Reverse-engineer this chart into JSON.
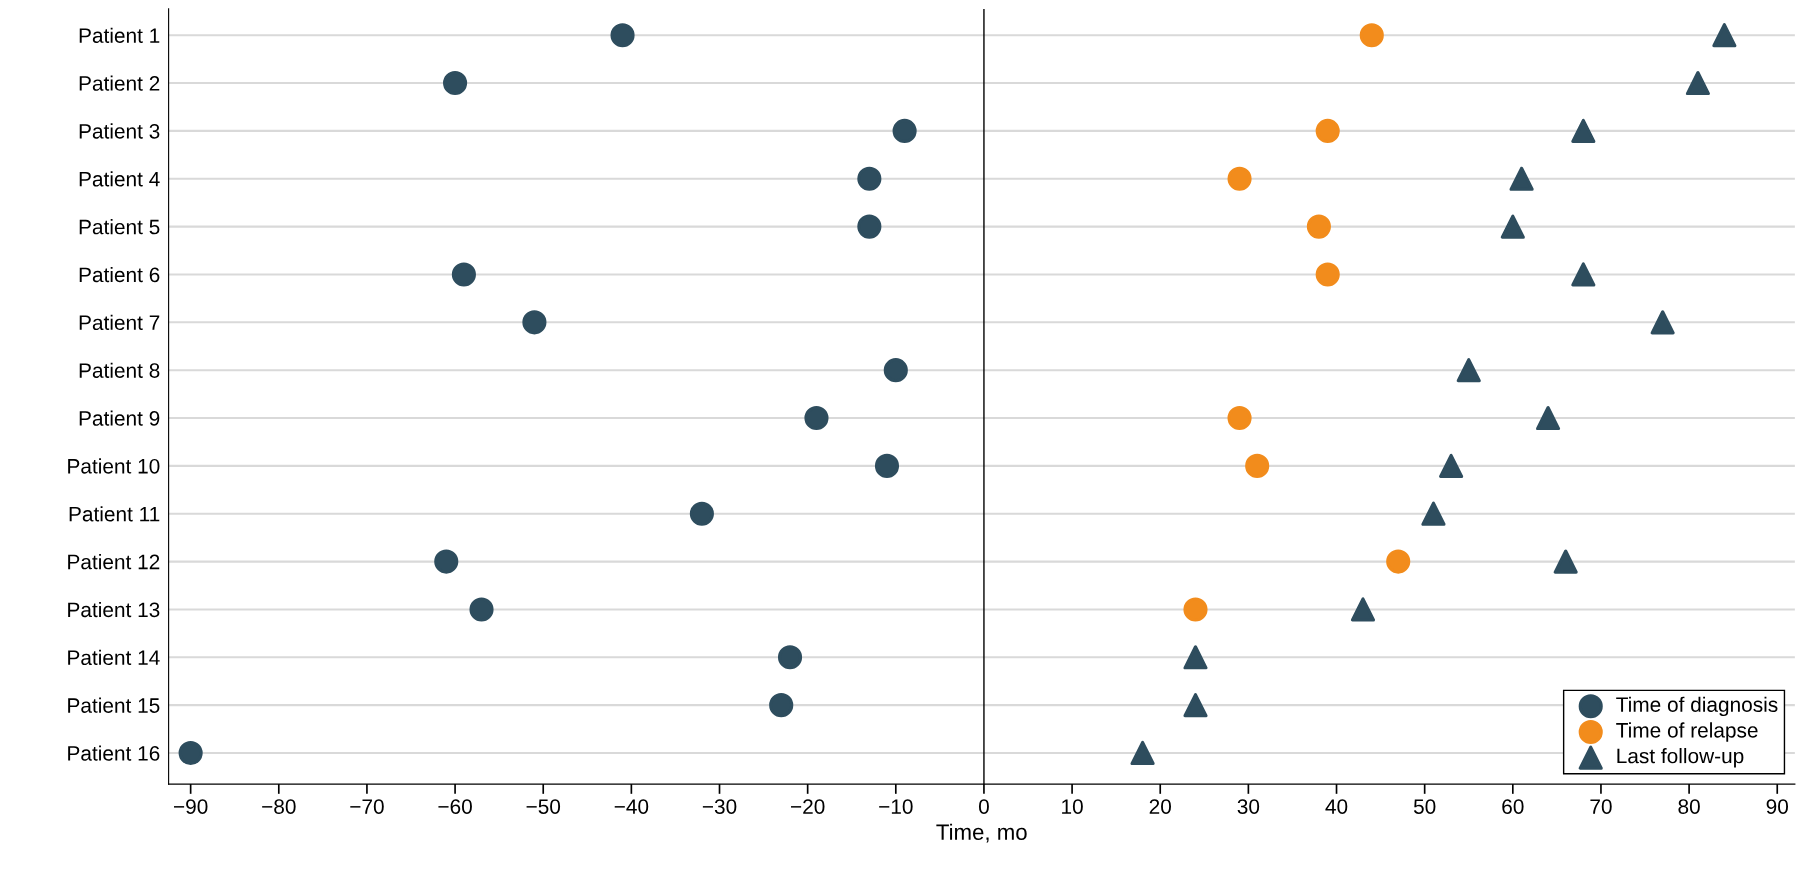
{
  "chart_data": {
    "type": "scatter",
    "categories": [
      "Patient 1",
      "Patient 2",
      "Patient 3",
      "Patient 4",
      "Patient 5",
      "Patient 6",
      "Patient 7",
      "Patient 8",
      "Patient 9",
      "Patient 10",
      "Patient 11",
      "Patient 12",
      "Patient 13",
      "Patient 14",
      "Patient 15",
      "Patient 16"
    ],
    "orientation": "horizontal",
    "xlabel": "Time, mo",
    "xlim": [
      -92.5,
      92
    ],
    "xticks": [
      {
        "value": -90,
        "label": "−90"
      },
      {
        "value": -80,
        "label": "−80"
      },
      {
        "value": -70,
        "label": "−70"
      },
      {
        "value": -60,
        "label": "−60"
      },
      {
        "value": -50,
        "label": "−50"
      },
      {
        "value": -40,
        "label": "−40"
      },
      {
        "value": -30,
        "label": "−30"
      },
      {
        "value": -20,
        "label": "−20"
      },
      {
        "value": -10,
        "label": "−10"
      },
      0,
      10,
      20,
      30,
      40,
      50,
      60,
      70,
      80,
      90
    ],
    "series": [
      {
        "name": "Time of diagnosis",
        "color": "#2e4d5e",
        "marker": "circle",
        "values": [
          -41,
          -60,
          -9,
          -13,
          -13,
          -59,
          -51,
          -10,
          -19,
          -11,
          -32,
          -61,
          -57,
          -22,
          -23,
          -90
        ]
      },
      {
        "name": "Time of relapse",
        "color": "#f28c1c",
        "marker": "circle",
        "values": [
          44,
          null,
          39,
          29,
          38,
          39,
          null,
          null,
          29,
          31,
          null,
          47,
          24,
          null,
          null,
          null
        ]
      },
      {
        "name": "Last follow-up",
        "color": "#2e4d5e",
        "marker": "triangle",
        "values": [
          84,
          81,
          68,
          61,
          60,
          68,
          77,
          55,
          64,
          53,
          51,
          66,
          43,
          24,
          24,
          18
        ]
      }
    ],
    "ref_lines": [
      {
        "axis": "x",
        "value": 0,
        "color": "#000000"
      }
    ],
    "grid": "y",
    "legend": "bottom right"
  }
}
